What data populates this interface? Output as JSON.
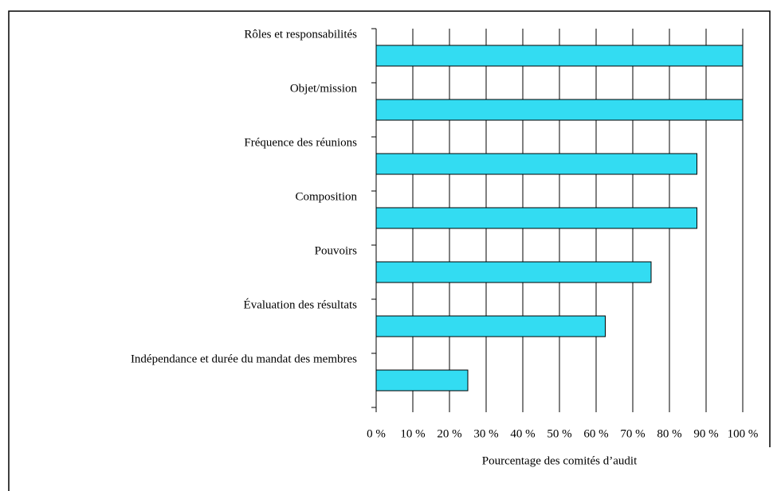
{
  "chart_data": {
    "type": "bar",
    "orientation": "horizontal",
    "categories": [
      "Rôles et responsabilités",
      "Objet/mission",
      "Fréquence des réunions",
      "Composition",
      "Pouvoirs",
      "Évaluation des résultats",
      "Indépendance et durée du mandat des membres"
    ],
    "values": [
      100,
      100,
      87.5,
      87.5,
      75,
      62.5,
      25
    ],
    "color": "#33dcf2",
    "x_label": "Pourcentage des comités d’audit",
    "xlim": [
      0,
      100
    ],
    "xticks": [
      {
        "value": 0,
        "label": "0 %"
      },
      {
        "value": 10,
        "label": "10 %"
      },
      {
        "value": 20,
        "label": "20 %"
      },
      {
        "value": 30,
        "label": "30 %"
      },
      {
        "value": 40,
        "label": "40 %"
      },
      {
        "value": 50,
        "label": "50 %"
      },
      {
        "value": 60,
        "label": "60 %"
      },
      {
        "value": 70,
        "label": "70 %"
      },
      {
        "value": 80,
        "label": "80 %"
      },
      {
        "value": 90,
        "label": "90 %"
      },
      {
        "value": 100,
        "label": "100 %"
      }
    ],
    "grid": true
  }
}
